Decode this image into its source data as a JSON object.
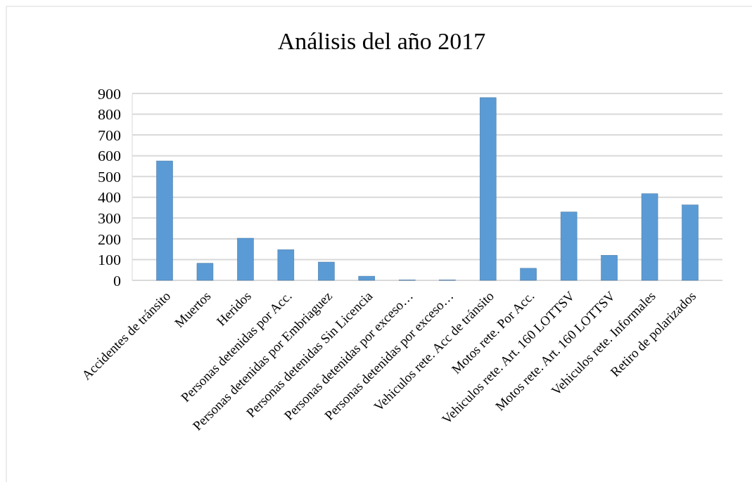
{
  "chart_data": {
    "type": "bar",
    "title": "Análisis del año 2017",
    "categories": [
      "Accidentes de tránsito",
      "Muertos",
      "Heridos",
      "Personas detenidas por Acc.",
      "Personas detenidas por Embriaguez",
      "Personas detenidas Sin Licencia",
      "Personas detenidas por exceso…",
      "Personas detenidas por exceso…",
      "Vehiculos rete. Acc de tránsito",
      "Motos rete. Por Acc.",
      "Vehiculos rete. Art. 160 LOTTSV",
      "Motos rete. Art. 160 LOTTSV",
      "Vehiculos rete. Informales",
      "Retiro de polarizados"
    ],
    "values": [
      575,
      82,
      203,
      148,
      88,
      20,
      2,
      2,
      880,
      58,
      329,
      121,
      417,
      363
    ],
    "color": "#5b9bd5",
    "ylim": [
      0,
      900
    ],
    "yticks": [
      0,
      100,
      200,
      300,
      400,
      500,
      600,
      700,
      800,
      900
    ],
    "grid": "y"
  }
}
